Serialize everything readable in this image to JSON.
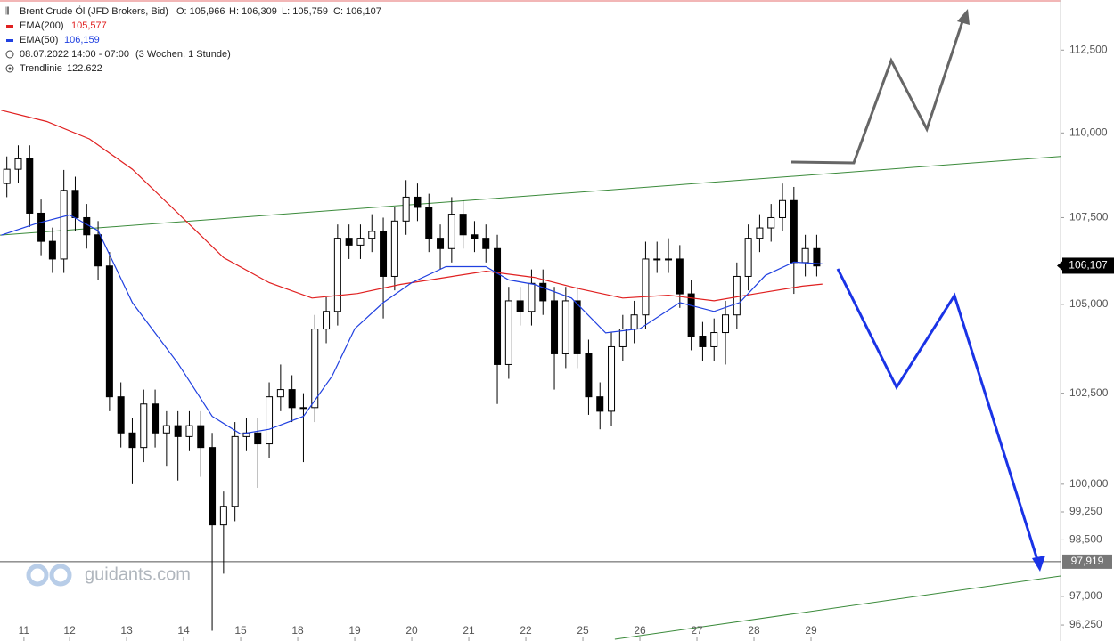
{
  "chart_data": {
    "type": "candlestick",
    "title": "Brent Crude Öl (JFD Brokers, Bid)",
    "quote": [
      "O: 105,966",
      "H: 106,309",
      "L: 105,759",
      "C: 106,107"
    ],
    "period": "08.07.2022 14:00 - 07:00",
    "span": "(3 Wochen, 1 Stunde)",
    "trendline_info": {
      "name": "Trendlinie",
      "label": "122.622"
    },
    "watermark": "guidants.com",
    "log_scale": true,
    "candle_color": "#000000",
    "xlim": [
      -0.22,
      18.375
    ],
    "xticks": [
      {
        "value": 0.2,
        "label": "11"
      },
      {
        "value": 1,
        "label": "12"
      },
      {
        "value": 2,
        "label": "13"
      },
      {
        "value": 3,
        "label": "14"
      },
      {
        "value": 4,
        "label": "15"
      },
      {
        "value": 5,
        "label": "18"
      },
      {
        "value": 6,
        "label": "19"
      },
      {
        "value": 7,
        "label": "20"
      },
      {
        "value": 8,
        "label": "21"
      },
      {
        "value": 9,
        "label": "22"
      },
      {
        "value": 10,
        "label": "25"
      },
      {
        "value": 11,
        "label": "26"
      },
      {
        "value": 12,
        "label": "27"
      },
      {
        "value": 13,
        "label": "28"
      },
      {
        "value": 14,
        "label": "29"
      }
    ],
    "ylim": [
      95.88,
      114.04
    ],
    "yticks": [
      {
        "value": 112.5,
        "label": "112,500"
      },
      {
        "value": 110,
        "label": "110,000"
      },
      {
        "value": 107.5,
        "label": "107,500"
      },
      {
        "value": 105,
        "label": "105,000"
      },
      {
        "value": 102.5,
        "label": "102,500"
      },
      {
        "value": 100,
        "label": "100,000"
      },
      {
        "value": 99.25,
        "label": "99,250"
      },
      {
        "value": 98.5,
        "label": "98,500"
      },
      {
        "value": 97,
        "label": "97,000"
      },
      {
        "value": 96.25,
        "label": "96,250"
      }
    ],
    "x": [
      -0.1,
      0.1,
      0.3,
      0.5,
      0.7,
      0.9,
      1.1,
      1.3,
      1.5,
      1.7,
      1.9,
      2.1,
      2.3,
      2.5,
      2.7,
      2.9,
      3.1,
      3.3,
      3.5,
      3.7,
      3.9,
      4.1,
      4.3,
      4.5,
      4.7,
      4.9,
      5.1,
      5.3,
      5.5,
      5.7,
      5.9,
      6.1,
      6.3,
      6.5,
      6.7,
      6.9,
      7.1,
      7.3,
      7.5,
      7.7,
      7.9,
      8.1,
      8.3,
      8.5,
      8.7,
      8.9,
      9.1,
      9.3,
      9.5,
      9.7,
      9.9,
      10.1,
      10.3,
      10.5,
      10.7,
      10.9,
      11.1,
      11.3,
      11.5,
      11.7,
      11.9,
      12.1,
      12.3,
      12.5,
      12.7,
      12.9,
      13.1,
      13.3,
      13.5,
      13.7,
      13.9,
      14.1
    ],
    "ohlc": [
      [
        108.5,
        109.3,
        108.1,
        108.92
      ],
      [
        108.92,
        109.63,
        108.52,
        109.23
      ],
      [
        109.23,
        109.63,
        107.23,
        107.63
      ],
      [
        107.63,
        108.03,
        106.41,
        106.81
      ],
      [
        106.81,
        107.21,
        105.9,
        106.3
      ],
      [
        106.3,
        108.9,
        105.9,
        108.3
      ],
      [
        108.3,
        108.7,
        107.1,
        107.5
      ],
      [
        107.5,
        107.9,
        106.6,
        107.0
      ],
      [
        107.0,
        107.4,
        105.7,
        106.1
      ],
      [
        106.1,
        106.5,
        102.0,
        102.4
      ],
      [
        102.4,
        102.8,
        101.0,
        101.4
      ],
      [
        101.4,
        101.8,
        100.0,
        101.0
      ],
      [
        101.0,
        102.6,
        100.6,
        102.2
      ],
      [
        102.2,
        102.6,
        101.0,
        101.4
      ],
      [
        101.4,
        102.0,
        100.5,
        101.6
      ],
      [
        101.6,
        102.0,
        100.1,
        101.3
      ],
      [
        101.3,
        102.0,
        100.9,
        101.6
      ],
      [
        101.6,
        102.0,
        100.2,
        101.0
      ],
      [
        101.0,
        101.4,
        96.1,
        98.9
      ],
      [
        98.9,
        99.8,
        97.6,
        99.4
      ],
      [
        99.4,
        101.7,
        99.0,
        101.3
      ],
      [
        101.3,
        101.8,
        100.9,
        101.4
      ],
      [
        101.4,
        101.8,
        99.9,
        101.1
      ],
      [
        101.1,
        102.8,
        100.7,
        102.4
      ],
      [
        102.4,
        103.3,
        102.0,
        102.6
      ],
      [
        102.6,
        103.0,
        101.7,
        102.1
      ],
      [
        102.1,
        102.5,
        100.6,
        102.1
      ],
      [
        102.1,
        104.7,
        101.7,
        104.3
      ],
      [
        104.3,
        105.2,
        103.9,
        104.8
      ],
      [
        104.8,
        107.3,
        104.4,
        106.9
      ],
      [
        106.9,
        107.3,
        106.3,
        106.7
      ],
      [
        106.7,
        107.3,
        106.3,
        106.9
      ],
      [
        106.9,
        107.6,
        106.5,
        107.1
      ],
      [
        107.1,
        107.5,
        104.6,
        105.8
      ],
      [
        105.8,
        107.8,
        105.4,
        107.4
      ],
      [
        107.4,
        108.6,
        107.0,
        108.1
      ],
      [
        108.1,
        108.5,
        107.4,
        107.8
      ],
      [
        107.8,
        108.2,
        106.5,
        106.9
      ],
      [
        106.9,
        107.3,
        106.0,
        106.6
      ],
      [
        106.6,
        108.1,
        106.2,
        107.6
      ],
      [
        107.6,
        108.0,
        106.6,
        107.0
      ],
      [
        107.0,
        107.4,
        106.5,
        106.9
      ],
      [
        106.9,
        107.3,
        106.2,
        106.6
      ],
      [
        106.6,
        107.0,
        102.2,
        103.3
      ],
      [
        103.3,
        105.5,
        102.9,
        105.1
      ],
      [
        105.1,
        105.5,
        104.4,
        104.8
      ],
      [
        104.8,
        106.0,
        104.4,
        105.6
      ],
      [
        105.6,
        106.0,
        104.7,
        105.1
      ],
      [
        105.1,
        105.5,
        102.6,
        103.6
      ],
      [
        103.6,
        105.5,
        103.2,
        105.1
      ],
      [
        105.1,
        105.5,
        103.2,
        103.6
      ],
      [
        103.6,
        104.0,
        101.9,
        102.4
      ],
      [
        102.4,
        102.8,
        101.5,
        102.0
      ],
      [
        102.0,
        104.2,
        101.6,
        103.8
      ],
      [
        103.8,
        104.7,
        103.4,
        104.3
      ],
      [
        104.3,
        105.1,
        103.9,
        104.7
      ],
      [
        104.7,
        106.8,
        104.3,
        106.3
      ],
      [
        106.3,
        106.8,
        105.9,
        106.3
      ],
      [
        106.3,
        106.9,
        105.9,
        106.3
      ],
      [
        106.3,
        106.7,
        104.9,
        105.3
      ],
      [
        105.3,
        105.7,
        103.7,
        104.1
      ],
      [
        104.1,
        104.5,
        103.4,
        103.8
      ],
      [
        103.8,
        104.6,
        103.4,
        104.2
      ],
      [
        104.2,
        105.1,
        103.3,
        104.7
      ],
      [
        104.7,
        106.2,
        104.3,
        105.8
      ],
      [
        105.8,
        107.3,
        105.4,
        106.9
      ],
      [
        106.9,
        107.6,
        106.5,
        107.2
      ],
      [
        107.2,
        107.9,
        106.8,
        107.5
      ],
      [
        107.5,
        108.5,
        107.1,
        108.0
      ],
      [
        108.0,
        108.4,
        105.3,
        106.2
      ],
      [
        106.2,
        107.0,
        105.8,
        106.6
      ],
      [
        106.6,
        107.0,
        105.8,
        106.1
      ]
    ],
    "series": [
      {
        "name": "EMA(200)",
        "value_label": "105,577",
        "color": "#e02020",
        "x": [
          -0.2,
          0.6,
          1.35,
          2.1,
          2.9,
          3.7,
          4.5,
          5.25,
          6.05,
          6.8,
          7.6,
          8.3,
          9.15,
          9.95,
          10.7,
          11.5,
          12.3,
          13.05,
          13.85,
          14.2
        ],
        "values": [
          110.68,
          110.34,
          109.82,
          108.92,
          107.63,
          106.34,
          105.62,
          105.18,
          105.31,
          105.57,
          105.77,
          105.95,
          105.77,
          105.44,
          105.18,
          105.26,
          105.1,
          105.31,
          105.52,
          105.58
        ]
      },
      {
        "name": "EMA(50)",
        "value_label": "106,159",
        "color": "#2040e0",
        "x": [
          -0.2,
          0.4,
          1.0,
          1.5,
          2.1,
          2.9,
          3.5,
          4.0,
          4.5,
          5.1,
          5.6,
          6.0,
          6.5,
          7.0,
          7.6,
          8.3,
          8.7,
          9.15,
          9.8,
          10.4,
          11.0,
          11.7,
          12.3,
          12.75,
          13.2,
          13.7,
          14.2
        ],
        "values": [
          106.99,
          107.32,
          107.58,
          107.12,
          105.05,
          103.33,
          101.86,
          101.37,
          101.5,
          101.86,
          102.97,
          104.31,
          105.05,
          105.62,
          106.08,
          106.08,
          105.7,
          105.57,
          105.18,
          104.19,
          104.31,
          105.05,
          104.8,
          105.05,
          105.83,
          106.21,
          106.16
        ]
      }
    ],
    "trendlines": [
      {
        "color": "#3a8a3a",
        "x": [
          -0.22,
          18.375
        ],
        "values": [
          106.99,
          109.3
        ]
      },
      {
        "color": "#3a8a3a",
        "x": [
          10.56,
          18.375
        ],
        "values": [
          95.88,
          97.54
        ]
      }
    ],
    "last_price": {
      "value": 106.107,
      "label": "106,107"
    },
    "level": {
      "value": 97.919,
      "label": "97,919"
    }
  }
}
